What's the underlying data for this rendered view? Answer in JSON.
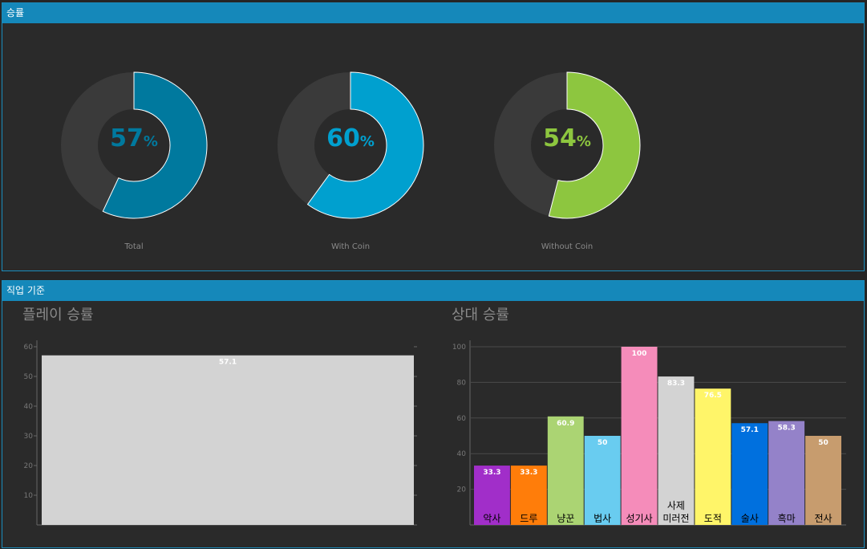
{
  "panels": {
    "winrate": {
      "title": "승률"
    },
    "job": {
      "title": "직업 기준"
    }
  },
  "donuts": [
    {
      "label": "Total",
      "value": 57,
      "unit": "%",
      "color": "#00799e"
    },
    {
      "label": "With Coin",
      "value": 60,
      "unit": "%",
      "color": "#00a0cf"
    },
    {
      "label": "Without Coin",
      "value": 54,
      "unit": "%",
      "color": "#8dc63f"
    }
  ],
  "colors": {
    "donut_track": "#3a3a3a",
    "panel_header": "#1588ba",
    "panel_border": "#1a8dbd"
  },
  "chart_data": [
    {
      "type": "bar",
      "title": "플레이 승률",
      "categories": [
        ""
      ],
      "values": [
        57.1
      ],
      "colors": [
        "#d3d3d3"
      ],
      "ylim": [
        0,
        60
      ],
      "yticks": [
        10,
        20,
        30,
        40,
        50,
        60
      ],
      "grid": false
    },
    {
      "type": "bar",
      "title": "상대 승률",
      "categories": [
        "악사",
        "드루",
        "냥꾼",
        "법사",
        "성기사",
        "사제\n미러전",
        "도적",
        "술사",
        "흑마",
        "전사"
      ],
      "values": [
        33.3,
        33.3,
        60.9,
        50,
        100,
        83.3,
        76.5,
        57.1,
        58.3,
        50
      ],
      "colors": [
        "#a12ec9",
        "#ff7d0a",
        "#abd473",
        "#69ccf0",
        "#f58cba",
        "#d3d3d3",
        "#fff569",
        "#0070de",
        "#9482c9",
        "#c79c6e"
      ],
      "value_label_colors": [
        "#ffffff",
        "#ffffff",
        "#ffffff",
        "#ffffff",
        "#ffffff",
        "#ffffff",
        "#ffffff",
        "#ffffff",
        "#ffffff",
        "#ffffff"
      ],
      "ylim": [
        0,
        100
      ],
      "yticks": [
        20,
        40,
        60,
        80,
        100
      ],
      "grid": true
    }
  ]
}
